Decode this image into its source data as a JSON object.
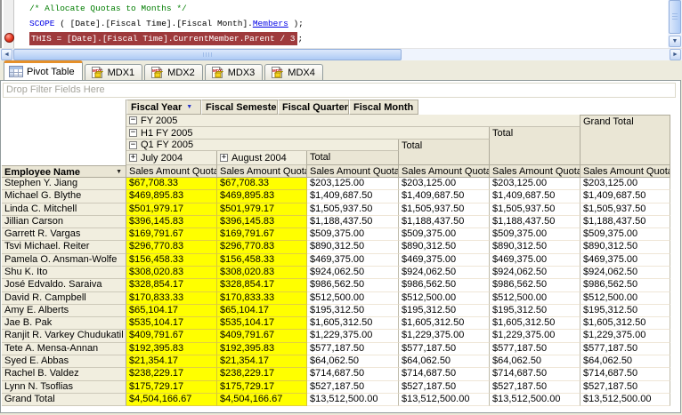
{
  "editor": {
    "line1": "/* Allocate Quotas to Months */",
    "line2_kw": "SCOPE",
    "line2_mid": " ( [Date].[Fiscal Time].[Fiscal Month].",
    "line2_fn": "Members",
    "line2_end": " );",
    "line3_hl": "THIS = [Date].[Fiscal Time].CurrentMember.Parent / 3",
    "line3_end": ";"
  },
  "icons": {
    "collapse": "−",
    "expand": "+",
    "dropdown": "▼",
    "arrow_left": "◄",
    "arrow_right": "►",
    "arrow_down": "▼"
  },
  "tabs": [
    {
      "label": "Pivot Table",
      "active": true
    },
    {
      "label": "MDX1",
      "active": false
    },
    {
      "label": "MDX2",
      "active": false
    },
    {
      "label": "MDX3",
      "active": false
    },
    {
      "label": "MDX4",
      "active": false
    }
  ],
  "pivot": {
    "drop_filter": "Drop Filter Fields Here",
    "fields": {
      "year": "Fiscal Year",
      "semester": "Fiscal Semester",
      "quarter": "Fiscal Quarter",
      "month": "Fiscal Month"
    },
    "headers": {
      "fy": "FY 2005",
      "h1": "H1 FY 2005",
      "q1": "Q1 FY 2005",
      "jul": "July 2004",
      "aug": "August 2004",
      "total": "Total",
      "grand_total": "Grand Total",
      "measure": "Sales Amount Quota"
    },
    "row_header": "Employee Name",
    "rows": [
      {
        "name": "Stephen Y. Jiang",
        "month": "$67,708.33",
        "total": "$203,125.00"
      },
      {
        "name": "Michael G. Blythe",
        "month": "$469,895.83",
        "total": "$1,409,687.50"
      },
      {
        "name": "Linda C. Mitchell",
        "month": "$501,979.17",
        "total": "$1,505,937.50"
      },
      {
        "name": "Jillian Carson",
        "month": "$396,145.83",
        "total": "$1,188,437.50"
      },
      {
        "name": "Garrett R. Vargas",
        "month": "$169,791.67",
        "total": "$509,375.00"
      },
      {
        "name": "Tsvi Michael. Reiter",
        "month": "$296,770.83",
        "total": "$890,312.50"
      },
      {
        "name": "Pamela O. Ansman-Wolfe",
        "month": "$156,458.33",
        "total": "$469,375.00"
      },
      {
        "name": "Shu K. Ito",
        "month": "$308,020.83",
        "total": "$924,062.50"
      },
      {
        "name": "José Edvaldo. Saraiva",
        "month": "$328,854.17",
        "total": "$986,562.50"
      },
      {
        "name": "David R. Campbell",
        "month": "$170,833.33",
        "total": "$512,500.00"
      },
      {
        "name": "Amy E. Alberts",
        "month": "$65,104.17",
        "total": "$195,312.50"
      },
      {
        "name": "Jae B. Pak",
        "month": "$535,104.17",
        "total": "$1,605,312.50"
      },
      {
        "name": "Ranjit R. Varkey Chudukatil",
        "month": "$409,791.67",
        "total": "$1,229,375.00"
      },
      {
        "name": "Tete A. Mensa-Annan",
        "month": "$192,395.83",
        "total": "$577,187.50"
      },
      {
        "name": "Syed E. Abbas",
        "month": "$21,354.17",
        "total": "$64,062.50"
      },
      {
        "name": "Rachel B. Valdez",
        "month": "$238,229.17",
        "total": "$714,687.50"
      },
      {
        "name": "Lynn N. Tsoflias",
        "month": "$175,729.17",
        "total": "$527,187.50"
      },
      {
        "name": "Grand Total",
        "month": "$4,504,166.67",
        "total": "$13,512,500.00"
      }
    ]
  },
  "colors": {
    "highlight_line": "#9E3A3C",
    "comment_green": "#007D00",
    "keyword_blue": "#0000E6",
    "cell_yellow": "#FFFF00",
    "active_tab_orange": "#E5902A",
    "header_beige": "#EAE6D5"
  }
}
